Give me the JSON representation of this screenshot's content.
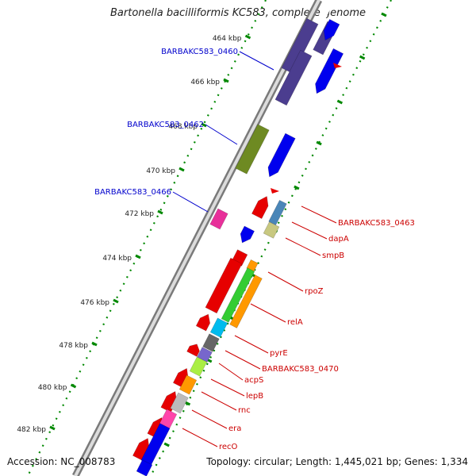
{
  "title": "Bartonella bacilliformis KC583, complete genome",
  "accession": {
    "label": "Accession:",
    "value": "NC_008783"
  },
  "summary": {
    "topology_label": "Topology:",
    "topology": "circular",
    "length_label": "Length:",
    "length": "1,445,021 bp",
    "genes_label": "Genes:",
    "genes": "1,334"
  },
  "colors": {
    "backbone": "#a0a0a0",
    "blue_label": "#0000cc",
    "red_label": "#cc0000",
    "tick": "#008800"
  },
  "kbp_ticks": [
    "464 kbp",
    "466 kbp",
    "468 kbp",
    "470 kbp",
    "472 kbp",
    "474 kbp",
    "476 kbp",
    "478 kbp",
    "480 kbp",
    "482 kbp"
  ],
  "left_labels": [
    "BARBAKC583_0460",
    "BARBAKC583_0462",
    "BARBAKC583_0466"
  ],
  "right_labels": [
    "BARBAKC583_0463",
    "dapA",
    "smpB",
    "rpoZ",
    "relA",
    "pyrE",
    "BARBAKC583_0470",
    "acpS",
    "lepB",
    "rnc",
    "era",
    "recO"
  ]
}
